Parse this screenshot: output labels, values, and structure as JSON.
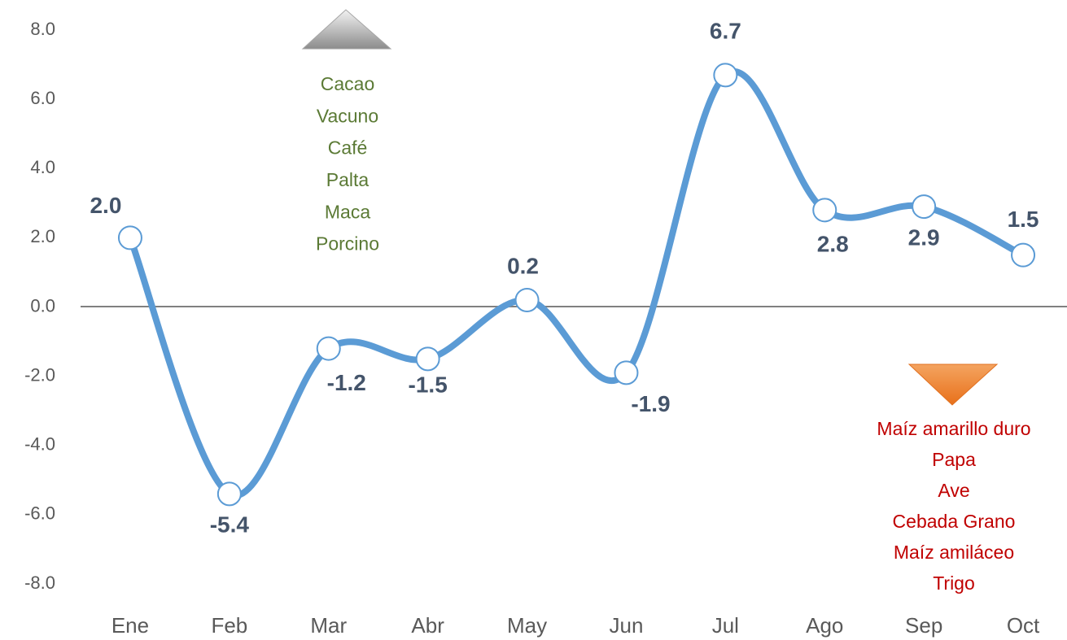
{
  "chart_data": {
    "type": "line",
    "categories": [
      "Ene",
      "Feb",
      "Mar",
      "Abr",
      "May",
      "Jun",
      "Jul",
      "Ago",
      "Sep",
      "Oct"
    ],
    "values": [
      2.0,
      -5.4,
      -1.2,
      -1.5,
      0.2,
      -1.9,
      6.7,
      2.8,
      2.9,
      1.5
    ],
    "value_labels": [
      "2.0",
      "-5.4",
      "-1.2",
      "-1.5",
      "0.2",
      "-1.9",
      "6.7",
      "2.8",
      "2.9",
      "1.5"
    ],
    "color": "#5b9bd5",
    "ylim": [
      -8,
      8
    ],
    "yticks": [
      {
        "value": 8,
        "label": "8.0"
      },
      {
        "value": 6,
        "label": "6.0"
      },
      {
        "value": 4,
        "label": "4.0"
      },
      {
        "value": 2,
        "label": "2.0"
      },
      {
        "value": 0,
        "label": "0.0"
      },
      {
        "value": -2,
        "label": "-2.0"
      },
      {
        "value": -4,
        "label": "-4.0"
      },
      {
        "value": -6,
        "label": "-6.0"
      },
      {
        "value": -8,
        "label": "-8.0"
      }
    ],
    "grid": false,
    "annotations": {
      "up": {
        "color": "#5b7a35",
        "items": [
          "Cacao",
          "Vacuno",
          "Café",
          "Palta",
          "Maca",
          "Porcino"
        ]
      },
      "down": {
        "color": "#c00000",
        "items": [
          "Maíz amarillo duro",
          "Papa",
          "Ave",
          "Cebada Grano",
          "Maíz amiláceo",
          "Trigo"
        ]
      }
    }
  }
}
